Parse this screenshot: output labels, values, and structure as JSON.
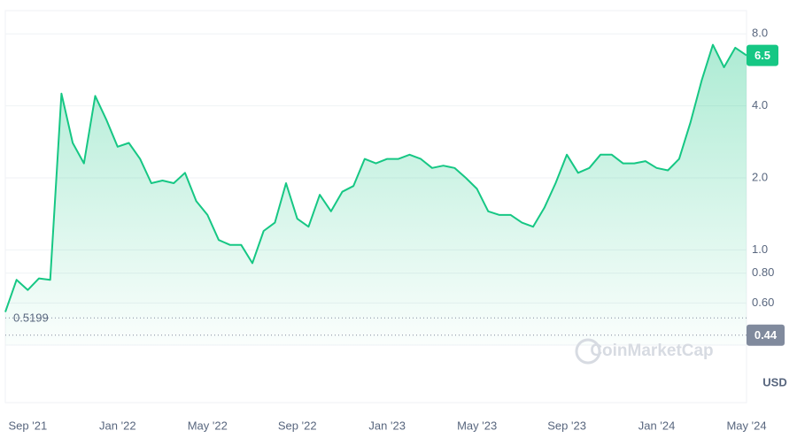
{
  "chart_data": {
    "type": "line",
    "scale": "log",
    "grid": true,
    "color": "#16c784",
    "currency": "USD",
    "watermark": "CoinMarketCap",
    "current_price": 6.5,
    "low_price": 0.5199,
    "axis_marker": 0.44,
    "ylim": [
      0.4,
      10
    ],
    "yticks": [
      {
        "value": 0.6,
        "label": "0.60"
      },
      {
        "value": 0.8,
        "label": "0.80"
      },
      {
        "value": 1,
        "label": "1.0"
      },
      {
        "value": 2,
        "label": "2.0"
      },
      {
        "value": 4,
        "label": "4.0"
      },
      {
        "value": 8,
        "label": "8.0"
      }
    ],
    "categories": [
      null,
      null,
      "Sep '21",
      null,
      null,
      null,
      null,
      null,
      null,
      null,
      "Jan '22",
      null,
      null,
      null,
      null,
      null,
      null,
      null,
      "May '22",
      null,
      null,
      null,
      null,
      null,
      null,
      null,
      "Sep '22",
      null,
      null,
      null,
      null,
      null,
      null,
      null,
      "Jan '23",
      null,
      null,
      null,
      null,
      null,
      null,
      null,
      "May '23",
      null,
      null,
      null,
      null,
      null,
      null,
      null,
      "Sep '23",
      null,
      null,
      null,
      null,
      null,
      null,
      null,
      "Jan '24",
      null,
      null,
      null,
      null,
      null,
      null,
      null,
      "May '24"
    ],
    "values": [
      0.55,
      0.75,
      0.68,
      0.76,
      0.75,
      4.5,
      2.8,
      2.3,
      4.4,
      3.5,
      2.7,
      2.8,
      2.4,
      1.9,
      1.95,
      1.9,
      2.1,
      1.6,
      1.4,
      1.1,
      1.05,
      1.05,
      0.88,
      1.2,
      1.3,
      1.9,
      1.35,
      1.25,
      1.7,
      1.45,
      1.75,
      1.85,
      2.4,
      2.3,
      2.4,
      2.4,
      2.5,
      2.4,
      2.2,
      2.25,
      2.2,
      2.0,
      1.8,
      1.45,
      1.4,
      1.4,
      1.3,
      1.25,
      1.5,
      1.9,
      2.5,
      2.1,
      2.2,
      2.5,
      2.5,
      2.3,
      2.3,
      2.35,
      2.2,
      2.15,
      2.4,
      3.4,
      5.1,
      7.2,
      5.8,
      7.0,
      6.5
    ]
  }
}
